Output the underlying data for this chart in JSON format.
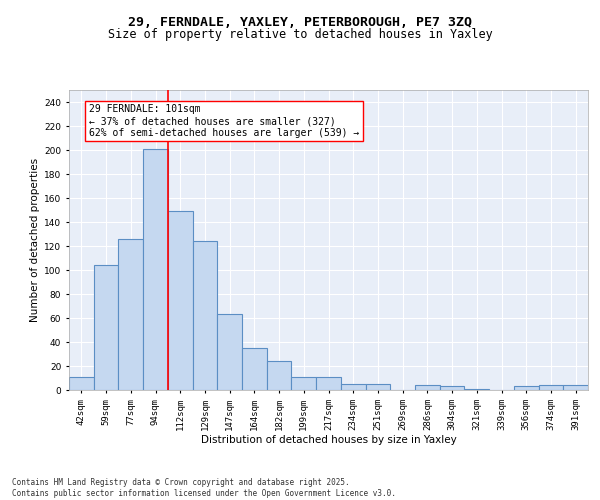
{
  "title_line1": "29, FERNDALE, YAXLEY, PETERBOROUGH, PE7 3ZQ",
  "title_line2": "Size of property relative to detached houses in Yaxley",
  "xlabel": "Distribution of detached houses by size in Yaxley",
  "ylabel": "Number of detached properties",
  "bar_color": "#c5d8f0",
  "bar_edge_color": "#5b8ec4",
  "bar_edge_width": 0.8,
  "categories": [
    "42sqm",
    "59sqm",
    "77sqm",
    "94sqm",
    "112sqm",
    "129sqm",
    "147sqm",
    "164sqm",
    "182sqm",
    "199sqm",
    "217sqm",
    "234sqm",
    "251sqm",
    "269sqm",
    "286sqm",
    "304sqm",
    "321sqm",
    "339sqm",
    "356sqm",
    "374sqm",
    "391sqm"
  ],
  "values": [
    11,
    104,
    126,
    201,
    149,
    124,
    63,
    35,
    24,
    11,
    11,
    5,
    5,
    0,
    4,
    3,
    1,
    0,
    3,
    4,
    4
  ],
  "vline_x": 3.5,
  "annotation_text": "29 FERNDALE: 101sqm\n← 37% of detached houses are smaller (327)\n62% of semi-detached houses are larger (539) →",
  "annotation_box_color": "white",
  "annotation_box_edge": "red",
  "vline_color": "red",
  "vline_linewidth": 1.2,
  "ylim": [
    0,
    250
  ],
  "yticks": [
    0,
    20,
    40,
    60,
    80,
    100,
    120,
    140,
    160,
    180,
    200,
    220,
    240
  ],
  "background_color": "#e8eef8",
  "grid_color": "white",
  "footer_text": "Contains HM Land Registry data © Crown copyright and database right 2025.\nContains public sector information licensed under the Open Government Licence v3.0.",
  "title_fontsize": 9.5,
  "subtitle_fontsize": 8.5,
  "axis_label_fontsize": 7.5,
  "tick_fontsize": 6.5,
  "annotation_fontsize": 7,
  "footer_fontsize": 5.5
}
